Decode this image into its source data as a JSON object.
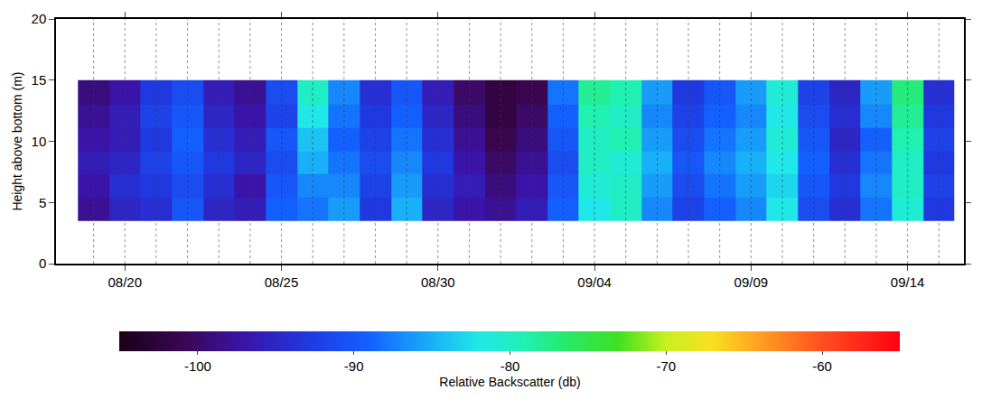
{
  "chart_data": {
    "type": "heatmap",
    "y_label": "Height above bottom (m)",
    "categories": [
      null,
      "08/20",
      null,
      null,
      null,
      null,
      "08/25",
      null,
      null,
      null,
      null,
      "08/30",
      null,
      null,
      null,
      null,
      "09/04",
      null,
      null,
      null,
      null,
      "09/09",
      null,
      null,
      null,
      null,
      "09/14",
      null
    ],
    "y": [
      3.5,
      5.4,
      7.3,
      9.2,
      11.1,
      13.0,
      15.0
    ],
    "ylim": [
      0,
      20
    ],
    "yticks": [
      0,
      5,
      10,
      15,
      20
    ],
    "grid": true,
    "z": [
      [
        -98,
        -95,
        -94,
        -90,
        -95,
        -96,
        -89,
        -88,
        -86,
        -93,
        -85,
        -95,
        -97,
        -98,
        -96,
        -89,
        -82,
        -80,
        -87,
        -92,
        -89,
        -87,
        -82,
        -91,
        -94,
        -88,
        -81,
        -93
      ],
      [
        -97,
        -94,
        -93,
        -91,
        -94,
        -97,
        -90,
        -87,
        -87,
        -92,
        -86,
        -94,
        -96,
        -99,
        -97,
        -90,
        -81,
        -80,
        -86,
        -91,
        -88,
        -86,
        -83,
        -90,
        -93,
        -87,
        -80,
        -92
      ],
      [
        -96,
        -95,
        -92,
        -90,
        -93,
        -95,
        -91,
        -85,
        -88,
        -91,
        -87,
        -93,
        -97,
        -100,
        -98,
        -91,
        -80,
        -81,
        -85,
        -90,
        -87,
        -85,
        -82,
        -89,
        -94,
        -88,
        -80,
        -93
      ],
      [
        -97,
        -96,
        -93,
        -89,
        -94,
        -96,
        -90,
        -84,
        -89,
        -92,
        -88,
        -94,
        -98,
        -101,
        -99,
        -90,
        -80,
        -79,
        -86,
        -91,
        -88,
        -86,
        -81,
        -90,
        -95,
        -89,
        -79,
        -92
      ],
      [
        -98,
        -96,
        -92,
        -90,
        -95,
        -97,
        -92,
        -82,
        -88,
        -93,
        -89,
        -95,
        -99,
        -102,
        -100,
        -89,
        -79,
        -80,
        -87,
        -92,
        -89,
        -87,
        -82,
        -91,
        -94,
        -87,
        -78,
        -93
      ],
      [
        -99,
        -97,
        -93,
        -91,
        -96,
        -98,
        -91,
        -80,
        -87,
        -94,
        -90,
        -96,
        -100,
        -102,
        -101,
        -88,
        -78,
        -79,
        -86,
        -93,
        -90,
        -86,
        -81,
        -92,
        -95,
        -86,
        -77,
        -94
      ]
    ],
    "colorbar": {
      "label": "Relative Backscatter (db)",
      "range": [
        -105,
        -55
      ],
      "ticks": [
        -100,
        -90,
        -80,
        -70,
        -60
      ]
    }
  }
}
